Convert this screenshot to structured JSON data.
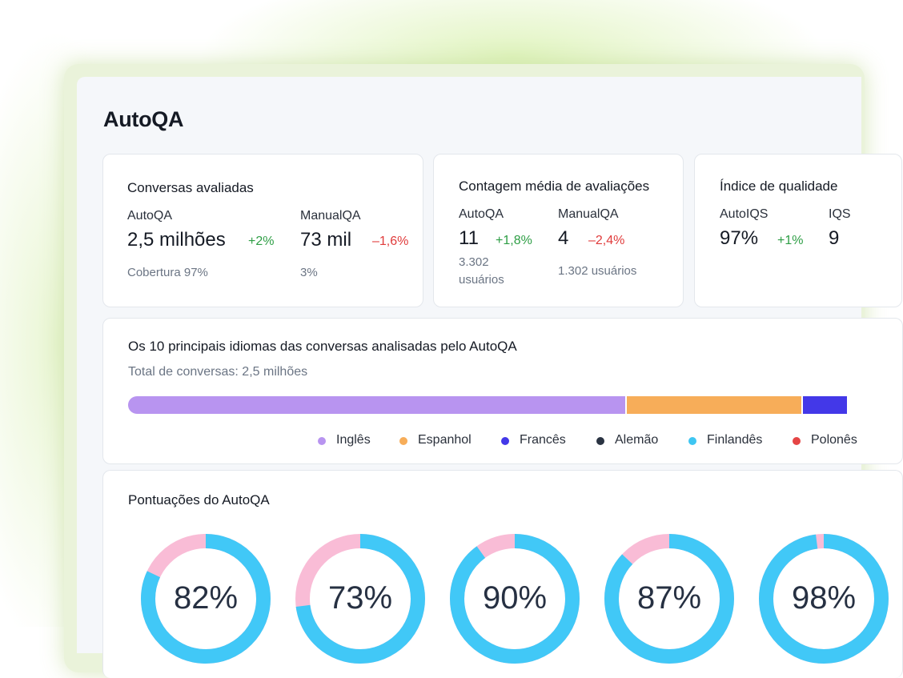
{
  "page": {
    "title": "AutoQA"
  },
  "cards": {
    "conversations": {
      "title": "Conversas avaliadas",
      "autoqa": {
        "label": "AutoQA",
        "value": "2,5 milhões",
        "delta": "+2%",
        "sub": "Cobertura 97%"
      },
      "manualqa": {
        "label": "ManualQA",
        "value": "73 mil",
        "delta": "–1,6%",
        "sub": "3%"
      }
    },
    "avg_reviews": {
      "title": "Contagem média de avaliações",
      "autoqa": {
        "label": "AutoQA",
        "value": "11",
        "delta": "+1,8%",
        "sub": "3.302 usuários"
      },
      "manualqa": {
        "label": "ManualQA",
        "value": "4",
        "delta": "–2,4%",
        "sub": "1.302 usuários"
      }
    },
    "quality": {
      "title": "Índice de qualidade",
      "autoiqs": {
        "label": "AutoIQS",
        "value": "97%",
        "delta": "+1%"
      },
      "iqs": {
        "label": "IQS",
        "value": "9"
      }
    }
  },
  "languages": {
    "title": "Os 10 principais idiomas das conversas analisadas pelo AutoQA",
    "subtitle": "Total de conversas: 2,5 milhões",
    "segments": [
      {
        "name": "Inglês",
        "share": 0.692,
        "color": "#b894f0"
      },
      {
        "name": "Espanhol",
        "share": 0.245,
        "color": "#f7ad59"
      },
      {
        "name": "Francês",
        "share": 0.063,
        "color": "#4338e8"
      }
    ],
    "legend": [
      {
        "name": "Inglês",
        "color": "#b894f0"
      },
      {
        "name": "Espanhol",
        "color": "#f7ad59"
      },
      {
        "name": "Francês",
        "color": "#4338e8"
      },
      {
        "name": "Alemão",
        "color": "#2a3342"
      },
      {
        "name": "Finlandês",
        "color": "#3ec6f2"
      },
      {
        "name": "Polonês",
        "color": "#e54545"
      }
    ]
  },
  "scores": {
    "title": "Pontuações do AutoQA",
    "ring_color": "#41c8f7",
    "rest_color": "#f9bcd6",
    "items": [
      {
        "value": 82,
        "label": "82%"
      },
      {
        "value": 73,
        "label": "73%"
      },
      {
        "value": 90,
        "label": "90%"
      },
      {
        "value": 87,
        "label": "87%"
      },
      {
        "value": 98,
        "label": "98%"
      }
    ]
  }
}
